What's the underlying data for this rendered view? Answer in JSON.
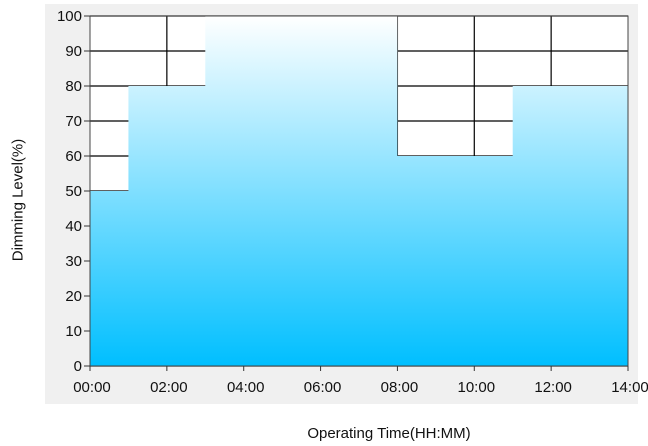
{
  "chart_data": {
    "type": "area",
    "title": "",
    "xlabel": "Operating Time(HH:MM)",
    "ylabel": "Dimming Level(%)",
    "x_ticks": [
      "00:00",
      "02:00",
      "04:00",
      "06:00",
      "08:00",
      "10:00",
      "12:00",
      "14:00"
    ],
    "y_ticks": [
      0,
      10,
      20,
      30,
      40,
      50,
      60,
      70,
      80,
      90,
      100
    ],
    "xlim": [
      0,
      14
    ],
    "ylim": [
      0,
      100
    ],
    "x_unit": "hours",
    "series": [
      {
        "step": true,
        "points": [
          [
            0,
            50
          ],
          [
            1,
            50
          ],
          [
            1,
            80
          ],
          [
            3,
            80
          ],
          [
            3,
            100
          ],
          [
            8,
            100
          ],
          [
            8,
            60
          ],
          [
            11,
            60
          ],
          [
            11,
            80
          ],
          [
            14,
            80
          ]
        ]
      }
    ],
    "grid": true,
    "colors": {
      "fill_top": "#ffffff",
      "fill_bottom": "#00bfff",
      "plot_background": "#ffffff",
      "outer_background": "#f0f0f0",
      "grid": "#000000"
    }
  }
}
